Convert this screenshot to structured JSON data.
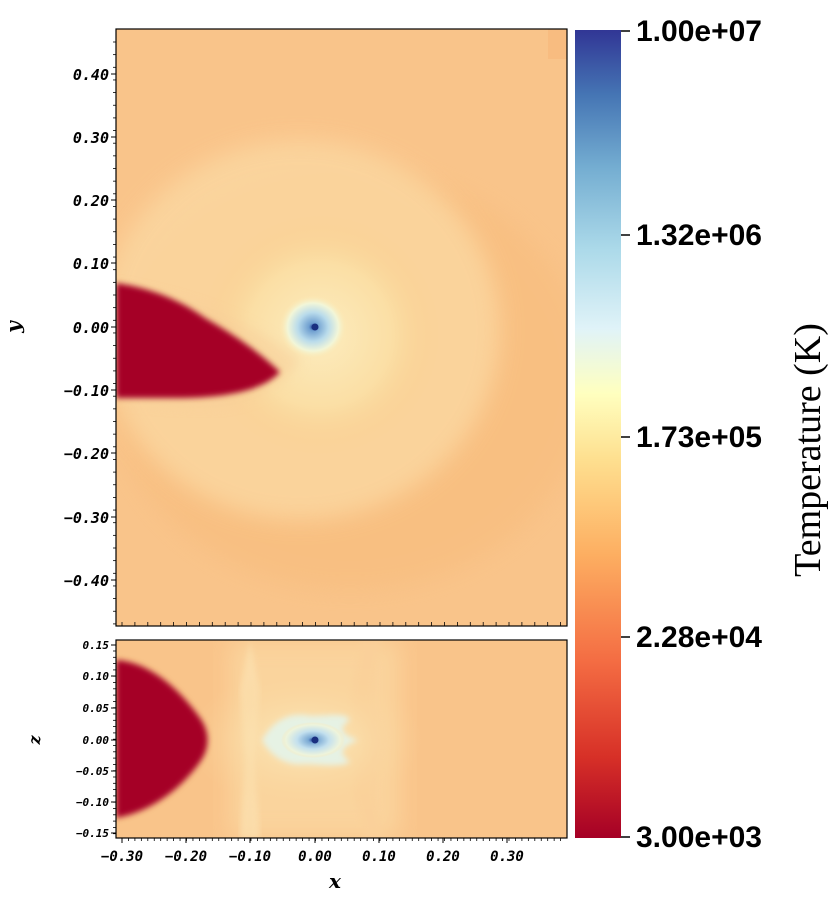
{
  "chart_data": [
    {
      "type": "heatmap",
      "panel": "x-y slice (top)",
      "xlabel": "",
      "ylabel": "y",
      "ytick_labels": [
        "0.40",
        "0.30",
        "0.20",
        "0.10",
        "0.00",
        "−0.10",
        "−0.20",
        "−0.30",
        "−0.40"
      ],
      "yticks": [
        0.4,
        0.3,
        0.2,
        0.1,
        0.0,
        -0.1,
        -0.2,
        -0.3,
        -0.4
      ],
      "xlim": [
        -0.31,
        0.39
      ],
      "ylim": [
        -0.47,
        0.47
      ],
      "features": {
        "hot_core": {
          "x": 0.0,
          "y": 0.0,
          "value_K": 10000000.0
        },
        "cold_stream": {
          "from_x": -0.31,
          "to_x": -0.06,
          "y_range": [
            -0.11,
            0.06
          ],
          "value_K": 3000.0
        },
        "background_value_K": 23000.0
      }
    },
    {
      "type": "heatmap",
      "panel": "x-z slice (bottom)",
      "xlabel": "x",
      "ylabel": "z",
      "ytick_labels": [
        "0.15",
        "0.10",
        "0.05",
        "0.00",
        "−0.05",
        "−0.10",
        "−0.15"
      ],
      "yticks": [
        0.15,
        0.1,
        0.05,
        0.0,
        -0.05,
        -0.1,
        -0.15
      ],
      "xtick_labels": [
        "−0.30",
        "−0.20",
        "−0.10",
        "0.00",
        "0.10",
        "0.20",
        "0.30"
      ],
      "xticks": [
        -0.3,
        -0.2,
        -0.1,
        0.0,
        0.1,
        0.2,
        0.3
      ],
      "xlim": [
        -0.31,
        0.39
      ],
      "ylim": [
        -0.155,
        0.155
      ],
      "features": {
        "hot_core": {
          "x": 0.0,
          "z": 0.0,
          "value_K": 10000000.0
        },
        "cold_stream": {
          "from_x": -0.31,
          "to_x": -0.17,
          "z_range": [
            -0.1,
            0.1
          ],
          "value_K": 3000.0
        }
      }
    }
  ],
  "colorbar": {
    "title": "Temperature (K)",
    "scale": "log",
    "range": [
      3000.0,
      10000000.0
    ],
    "tick_labels": [
      "1.00e+07",
      "1.32e+06",
      "1.73e+05",
      "2.28e+04",
      "3.00e+03"
    ],
    "tick_values": [
      10000000.0,
      1320000.0,
      173000.0,
      22800.0,
      3000.0
    ],
    "colormap": [
      "#a50026",
      "#d73027",
      "#f46d43",
      "#fdae61",
      "#fee090",
      "#ffffbf",
      "#e0f3f8",
      "#abd9e9",
      "#74add1",
      "#4575b4",
      "#313695"
    ]
  }
}
